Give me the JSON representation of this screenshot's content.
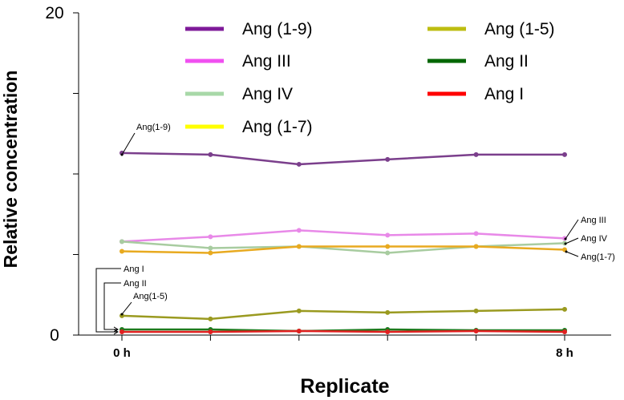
{
  "chart_data": {
    "type": "line",
    "xlabel": "Replicate",
    "ylabel": "Relative concentration",
    "ylim": [
      0,
      20
    ],
    "y_ticks": [
      "0",
      "20"
    ],
    "x_points": [
      1,
      2,
      3,
      4,
      5,
      6
    ],
    "x_tick_labels": [
      {
        "x": 1,
        "label": "0 h"
      },
      {
        "x": 6,
        "label": "8 h"
      }
    ],
    "grid": false,
    "legend_position": "top",
    "series": [
      {
        "name": "Ang (1-9)",
        "color": "#7B3F8C",
        "legend_color": "#7E1A99",
        "values": [
          11.3,
          11.2,
          10.6,
          10.9,
          11.2,
          11.2
        ]
      },
      {
        "name": "Ang III",
        "color": "#E889E8",
        "legend_color": "#F050F0",
        "values": [
          5.8,
          6.1,
          6.5,
          6.2,
          6.3,
          6.0
        ]
      },
      {
        "name": "Ang IV",
        "color": "#A8CCA0",
        "legend_color": "#A8D8A8",
        "values": [
          5.8,
          5.4,
          5.5,
          5.1,
          5.5,
          5.7
        ]
      },
      {
        "name": "Ang (1-7)",
        "color": "#E8AA20",
        "legend_color": "#FFFF00",
        "values": [
          5.2,
          5.1,
          5.5,
          5.5,
          5.5,
          5.3
        ]
      },
      {
        "name": "Ang (1-5)",
        "color": "#9A9A20",
        "legend_color": "#BDBD10",
        "values": [
          1.2,
          1.0,
          1.5,
          1.4,
          1.5,
          1.6
        ]
      },
      {
        "name": "Ang II",
        "color": "#1E7A1E",
        "legend_color": "#006600",
        "values": [
          0.35,
          0.35,
          0.25,
          0.35,
          0.3,
          0.3
        ]
      },
      {
        "name": "Ang I",
        "color": "#E02020",
        "legend_color": "#FF0000",
        "values": [
          0.2,
          0.2,
          0.25,
          0.2,
          0.25,
          0.2
        ]
      }
    ],
    "annotations": [
      {
        "text": "Ang(1-9)",
        "series": "Ang (1-9)",
        "side": "left"
      },
      {
        "text": "Ang III",
        "series": "Ang III",
        "side": "right"
      },
      {
        "text": "Ang IV",
        "series": "Ang IV",
        "side": "right"
      },
      {
        "text": "Ang(1-7)",
        "series": "Ang (1-7)",
        "side": "right"
      },
      {
        "text": "Ang(1-5)",
        "series": "Ang (1-5)",
        "side": "left"
      },
      {
        "text": "Ang II",
        "series": "Ang II",
        "side": "left"
      },
      {
        "text": "Ang I",
        "series": "Ang I",
        "side": "left"
      }
    ]
  }
}
